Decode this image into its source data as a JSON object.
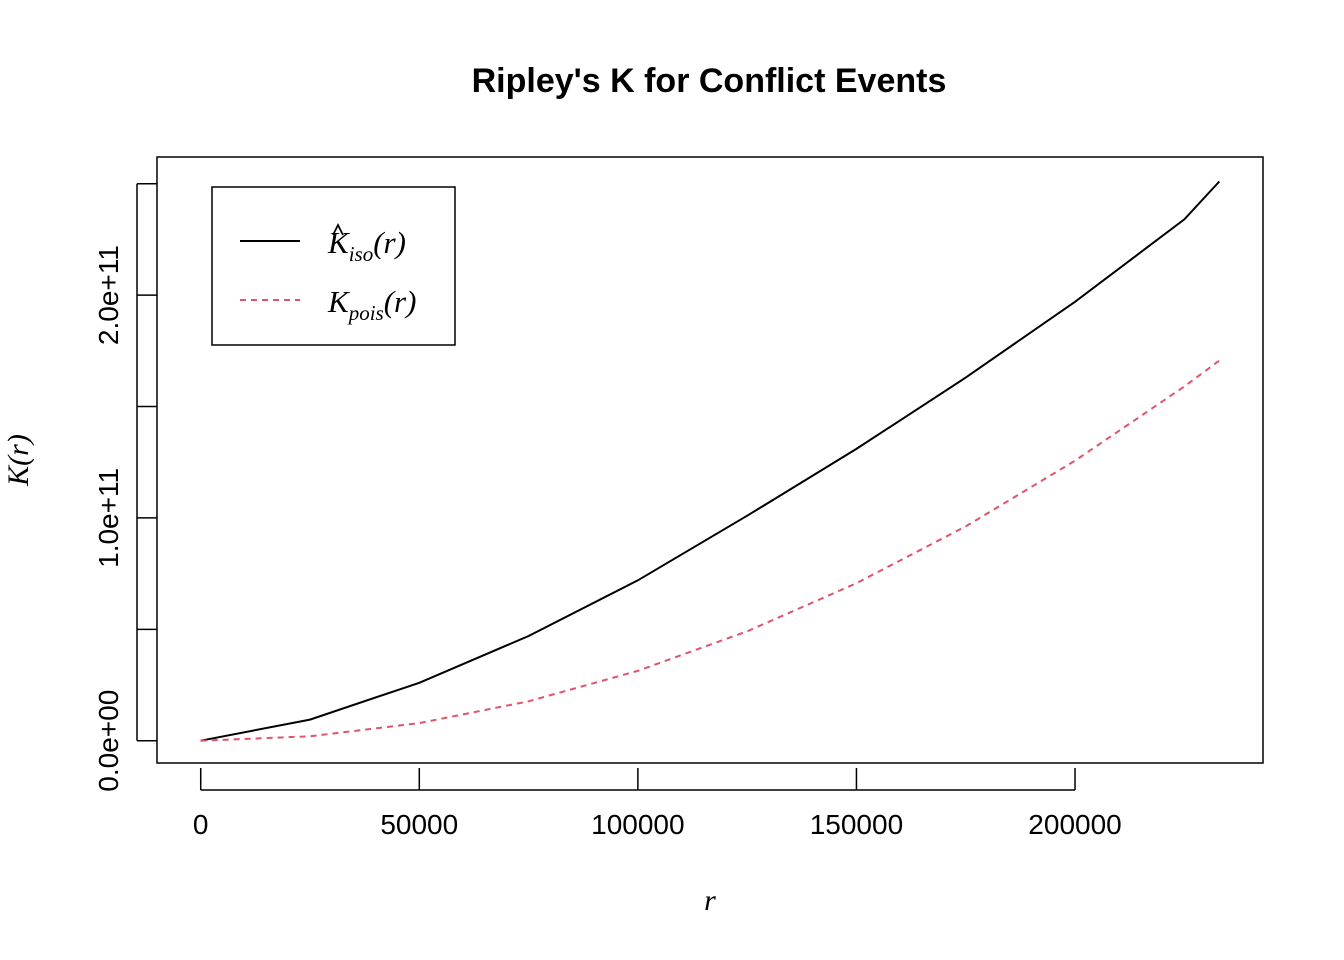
{
  "chart_data": {
    "type": "line",
    "title": "Ripley's K for Conflict Events",
    "xlabel": "r",
    "ylabel": "K(r)",
    "xlim": [
      -10000,
      243000
    ],
    "ylim": [
      -10000000000,
      262000000000
    ],
    "x_ticks": [
      0,
      50000,
      100000,
      150000,
      200000
    ],
    "x_tick_labels": [
      "0",
      "50000",
      "100000",
      "150000",
      "200000"
    ],
    "y_ticks": [
      0,
      50000000000,
      100000000000,
      150000000000,
      200000000000,
      250000000000
    ],
    "y_tick_labels": [
      "0.0e+00",
      "",
      "1.0e+11",
      "",
      "2.0e+11",
      ""
    ],
    "grid": false,
    "legend_position": "top-left",
    "x": [
      0,
      25000,
      50000,
      75000,
      100000,
      125000,
      150000,
      175000,
      200000,
      225000,
      233000
    ],
    "series": [
      {
        "name": "K̂iso(r)",
        "legend_main": "K",
        "legend_sub": "iso",
        "legend_arg": "(r)",
        "hat": true,
        "color": "#000000",
        "dash": "solid",
        "values": [
          0,
          9500000000,
          26000000000,
          47000000000,
          72000000000,
          101000000000,
          131000000000,
          163000000000,
          197000000000,
          234000000000,
          251000000000
        ]
      },
      {
        "name": "Kpois(r)",
        "legend_main": "K",
        "legend_sub": "pois",
        "legend_arg": "(r)",
        "hat": false,
        "color": "#DF536B",
        "dash": "dashed",
        "values": [
          0,
          2000000000,
          7900000000,
          17700000000,
          31400000000,
          49100000000,
          70700000000,
          96200000000,
          125700000000,
          159000000000,
          170600000000
        ]
      }
    ]
  }
}
